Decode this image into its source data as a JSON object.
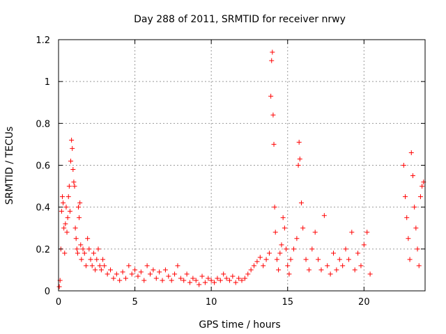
{
  "chart_data": {
    "type": "scatter",
    "title": "Day 288 of 2011, SRMTID for receiver nrwy",
    "xlabel": "GPS time / hours",
    "ylabel": "SRMTID / TECUs",
    "xlim": [
      0,
      24
    ],
    "ylim": [
      0,
      1.2
    ],
    "xticks": [
      0,
      5,
      10,
      15,
      20
    ],
    "yticks": [
      0,
      0.2,
      0.4,
      0.6,
      0.8,
      1.0,
      1.2
    ],
    "xtick_labels": [
      "0",
      "5",
      "10",
      "15",
      "20"
    ],
    "ytick_labels": [
      "0",
      "0.2",
      "0.4",
      "0.6",
      "0.8",
      "1",
      "1.2"
    ],
    "grid": true,
    "marker": "+",
    "marker_color": "#ff0000",
    "series": [
      {
        "name": "SRMTID",
        "points": [
          [
            0.05,
            0.02
          ],
          [
            0.1,
            0.05
          ],
          [
            0.15,
            0.2
          ],
          [
            0.2,
            0.38
          ],
          [
            0.25,
            0.45
          ],
          [
            0.3,
            0.42
          ],
          [
            0.35,
            0.3
          ],
          [
            0.4,
            0.18
          ],
          [
            0.45,
            0.32
          ],
          [
            0.5,
            0.4
          ],
          [
            0.55,
            0.28
          ],
          [
            0.6,
            0.35
          ],
          [
            0.65,
            0.45
          ],
          [
            0.7,
            0.5
          ],
          [
            0.75,
            0.38
          ],
          [
            0.8,
            0.62
          ],
          [
            0.85,
            0.72
          ],
          [
            0.9,
            0.68
          ],
          [
            0.95,
            0.58
          ],
          [
            1.0,
            0.52
          ],
          [
            1.05,
            0.5
          ],
          [
            1.1,
            0.3
          ],
          [
            1.15,
            0.25
          ],
          [
            1.2,
            0.2
          ],
          [
            1.25,
            0.18
          ],
          [
            1.3,
            0.4
          ],
          [
            1.35,
            0.35
          ],
          [
            1.4,
            0.42
          ],
          [
            1.45,
            0.22
          ],
          [
            1.5,
            0.15
          ],
          [
            1.6,
            0.2
          ],
          [
            1.7,
            0.18
          ],
          [
            1.8,
            0.12
          ],
          [
            1.9,
            0.25
          ],
          [
            2.0,
            0.2
          ],
          [
            2.1,
            0.15
          ],
          [
            2.2,
            0.12
          ],
          [
            2.3,
            0.18
          ],
          [
            2.4,
            0.1
          ],
          [
            2.5,
            0.15
          ],
          [
            2.6,
            0.2
          ],
          [
            2.7,
            0.12
          ],
          [
            2.8,
            0.1
          ],
          [
            2.9,
            0.15
          ],
          [
            3.0,
            0.12
          ],
          [
            3.2,
            0.08
          ],
          [
            3.4,
            0.1
          ],
          [
            3.6,
            0.06
          ],
          [
            3.8,
            0.08
          ],
          [
            4.0,
            0.05
          ],
          [
            4.2,
            0.09
          ],
          [
            4.4,
            0.06
          ],
          [
            4.6,
            0.12
          ],
          [
            4.8,
            0.08
          ],
          [
            5.0,
            0.1
          ],
          [
            5.2,
            0.07
          ],
          [
            5.4,
            0.09
          ],
          [
            5.6,
            0.05
          ],
          [
            5.8,
            0.12
          ],
          [
            6.0,
            0.08
          ],
          [
            6.2,
            0.1
          ],
          [
            6.4,
            0.06
          ],
          [
            6.6,
            0.09
          ],
          [
            6.8,
            0.05
          ],
          [
            7.0,
            0.1
          ],
          [
            7.2,
            0.07
          ],
          [
            7.4,
            0.05
          ],
          [
            7.6,
            0.08
          ],
          [
            7.8,
            0.12
          ],
          [
            8.0,
            0.06
          ],
          [
            8.2,
            0.05
          ],
          [
            8.4,
            0.08
          ],
          [
            8.6,
            0.04
          ],
          [
            8.8,
            0.06
          ],
          [
            9.0,
            0.05
          ],
          [
            9.2,
            0.03
          ],
          [
            9.4,
            0.07
          ],
          [
            9.6,
            0.04
          ],
          [
            9.8,
            0.06
          ],
          [
            10.0,
            0.05
          ],
          [
            10.2,
            0.04
          ],
          [
            10.4,
            0.06
          ],
          [
            10.6,
            0.05
          ],
          [
            10.8,
            0.08
          ],
          [
            11.0,
            0.06
          ],
          [
            11.2,
            0.05
          ],
          [
            11.4,
            0.07
          ],
          [
            11.6,
            0.04
          ],
          [
            11.8,
            0.06
          ],
          [
            12.0,
            0.05
          ],
          [
            12.2,
            0.06
          ],
          [
            12.4,
            0.08
          ],
          [
            12.6,
            0.1
          ],
          [
            12.8,
            0.12
          ],
          [
            13.0,
            0.14
          ],
          [
            13.2,
            0.16
          ],
          [
            13.4,
            0.12
          ],
          [
            13.6,
            0.15
          ],
          [
            13.8,
            0.18
          ],
          [
            13.9,
            0.93
          ],
          [
            13.95,
            1.1
          ],
          [
            14.0,
            1.14
          ],
          [
            14.05,
            0.84
          ],
          [
            14.1,
            0.7
          ],
          [
            14.15,
            0.4
          ],
          [
            14.2,
            0.28
          ],
          [
            14.3,
            0.15
          ],
          [
            14.4,
            0.1
          ],
          [
            14.5,
            0.18
          ],
          [
            14.6,
            0.22
          ],
          [
            14.7,
            0.35
          ],
          [
            14.8,
            0.3
          ],
          [
            14.9,
            0.2
          ],
          [
            15.0,
            0.12
          ],
          [
            15.1,
            0.08
          ],
          [
            15.2,
            0.15
          ],
          [
            15.4,
            0.2
          ],
          [
            15.6,
            0.25
          ],
          [
            15.7,
            0.6
          ],
          [
            15.75,
            0.71
          ],
          [
            15.8,
            0.63
          ],
          [
            15.9,
            0.42
          ],
          [
            16.0,
            0.3
          ],
          [
            16.2,
            0.15
          ],
          [
            16.4,
            0.1
          ],
          [
            16.6,
            0.2
          ],
          [
            16.8,
            0.28
          ],
          [
            17.0,
            0.15
          ],
          [
            17.2,
            0.1
          ],
          [
            17.4,
            0.36
          ],
          [
            17.6,
            0.12
          ],
          [
            17.8,
            0.08
          ],
          [
            18.0,
            0.18
          ],
          [
            18.2,
            0.1
          ],
          [
            18.4,
            0.15
          ],
          [
            18.6,
            0.12
          ],
          [
            18.8,
            0.2
          ],
          [
            19.0,
            0.15
          ],
          [
            19.2,
            0.28
          ],
          [
            19.4,
            0.1
          ],
          [
            19.6,
            0.18
          ],
          [
            19.8,
            0.12
          ],
          [
            20.0,
            0.22
          ],
          [
            20.2,
            0.28
          ],
          [
            20.4,
            0.08
          ],
          [
            22.6,
            0.6
          ],
          [
            22.7,
            0.45
          ],
          [
            22.8,
            0.35
          ],
          [
            22.9,
            0.25
          ],
          [
            23.0,
            0.15
          ],
          [
            23.1,
            0.66
          ],
          [
            23.2,
            0.55
          ],
          [
            23.3,
            0.4
          ],
          [
            23.4,
            0.3
          ],
          [
            23.5,
            0.2
          ],
          [
            23.6,
            0.12
          ],
          [
            23.7,
            0.45
          ],
          [
            23.8,
            0.5
          ],
          [
            23.9,
            0.52
          ]
        ]
      }
    ]
  }
}
